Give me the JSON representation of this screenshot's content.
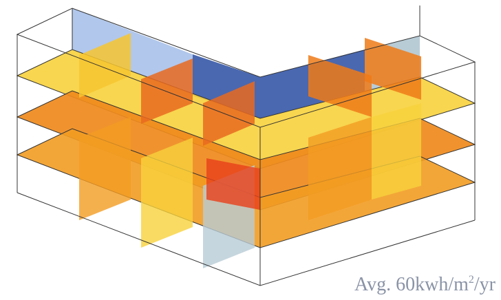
{
  "label": {
    "text": "Avg. 60kwh/m",
    "superscript": "2",
    "suffix": "/yr"
  }
}
